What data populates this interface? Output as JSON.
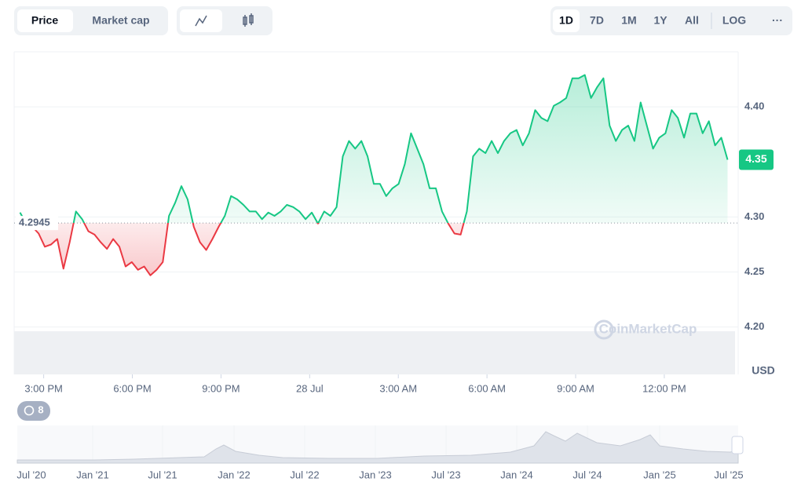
{
  "chart_data": {
    "type": "line",
    "x": [
      14.2,
      14.41,
      14.62,
      14.83,
      15.04,
      15.25,
      15.46,
      15.67,
      15.88,
      16.09,
      16.3,
      16.51,
      16.72,
      16.93,
      17.14,
      17.35,
      17.56,
      17.77,
      17.98,
      18.19,
      18.4,
      18.61,
      18.82,
      19.03,
      19.24,
      19.45,
      19.66,
      19.87,
      20.08,
      20.29,
      20.5,
      20.71,
      20.92,
      21.13,
      21.34,
      21.55,
      21.76,
      21.97,
      22.18,
      22.39,
      22.6,
      22.81,
      23.02,
      23.23,
      23.44,
      23.65,
      23.86,
      24.07,
      24.28,
      24.49,
      24.7,
      24.91,
      25.12,
      25.33,
      25.54,
      25.75,
      25.96,
      26.17,
      26.38,
      26.59,
      26.8,
      27.01,
      27.22,
      27.43,
      27.64,
      27.85,
      28.06,
      28.27,
      28.48,
      28.69,
      28.9,
      29.11,
      29.32,
      29.53,
      29.74,
      29.95,
      30.16,
      30.37,
      30.58,
      30.79,
      31,
      31.21,
      31.42,
      31.63,
      31.84,
      32.05,
      32.26,
      32.47,
      32.68,
      32.89,
      33.1,
      33.31,
      33.52,
      33.73,
      33.94,
      34.15,
      34.36,
      34.57,
      34.78,
      34.99,
      35.2,
      35.41,
      35.62,
      35.83,
      36.04,
      36.25,
      36.46,
      36.67,
      36.88,
      37.09,
      37.3,
      37.51,
      37.72,
      37.93,
      38.14
    ],
    "values": [
      4.304,
      4.294,
      4.291,
      4.285,
      4.273,
      4.275,
      4.28,
      4.253,
      4.277,
      4.305,
      4.298,
      4.287,
      4.284,
      4.277,
      4.271,
      4.28,
      4.273,
      4.255,
      4.259,
      4.252,
      4.255,
      4.247,
      4.252,
      4.259,
      4.301,
      4.313,
      4.328,
      4.316,
      4.291,
      4.277,
      4.27,
      4.28,
      4.291,
      4.301,
      4.319,
      4.316,
      4.311,
      4.305,
      4.305,
      4.298,
      4.304,
      4.301,
      4.305,
      4.311,
      4.309,
      4.305,
      4.298,
      4.304,
      4.294,
      4.305,
      4.301,
      4.309,
      4.355,
      4.369,
      4.362,
      4.369,
      4.355,
      4.33,
      4.33,
      4.319,
      4.326,
      4.33,
      4.348,
      4.376,
      4.362,
      4.348,
      4.326,
      4.326,
      4.305,
      4.294,
      4.285,
      4.284,
      4.305,
      4.355,
      4.362,
      4.358,
      4.369,
      4.358,
      4.369,
      4.376,
      4.379,
      4.365,
      4.376,
      4.397,
      4.39,
      4.387,
      4.401,
      4.404,
      4.408,
      4.426,
      4.426,
      4.429,
      4.408,
      4.418,
      4.426,
      4.383,
      4.369,
      4.379,
      4.383,
      4.369,
      4.404,
      4.383,
      4.362,
      4.372,
      4.376,
      4.397,
      4.39,
      4.372,
      4.394,
      4.394,
      4.376,
      4.387,
      4.365,
      4.372,
      4.352
    ],
    "up_color": "#16c784",
    "down_color": "#ea3943",
    "baseline": 4.2945,
    "last_price_label": "4.35",
    "xlim": [
      14,
      38.5
    ],
    "xticks": [
      {
        "value": 15,
        "label": "3:00 PM"
      },
      {
        "value": 18,
        "label": "6:00 PM"
      },
      {
        "value": 21,
        "label": "9:00 PM"
      },
      {
        "value": 24,
        "label": "28 Jul"
      },
      {
        "value": 27,
        "label": "3:00 AM"
      },
      {
        "value": 30,
        "label": "6:00 AM"
      },
      {
        "value": 33,
        "label": "9:00 AM"
      },
      {
        "value": 36,
        "label": "12:00 PM"
      }
    ],
    "ylim": [
      4.157,
      4.45
    ],
    "yticks": [
      {
        "value": 4.2,
        "label": "4.20"
      },
      4.25,
      {
        "value": 4.3,
        "label": "4.30"
      },
      {
        "value": 4.4,
        "label": "4.40"
      }
    ],
    "y_unit": "USD",
    "grid": true
  },
  "ui": {
    "tabs": [
      "Price",
      "Market cap"
    ],
    "ranges": [
      "1D",
      "7D",
      "1M",
      "1Y",
      "All",
      "LOG"
    ],
    "more": "···",
    "watermark": "CoinMarketCap",
    "history_count": "8",
    "navigator_labels": [
      "Jul '20",
      "Jan '21",
      "Jul '21",
      "Jan '22",
      "Jul '22",
      "Jan '23",
      "Jul '23",
      "Jan '24",
      "Jul '24",
      "Jan '25",
      "Jul '25"
    ]
  }
}
